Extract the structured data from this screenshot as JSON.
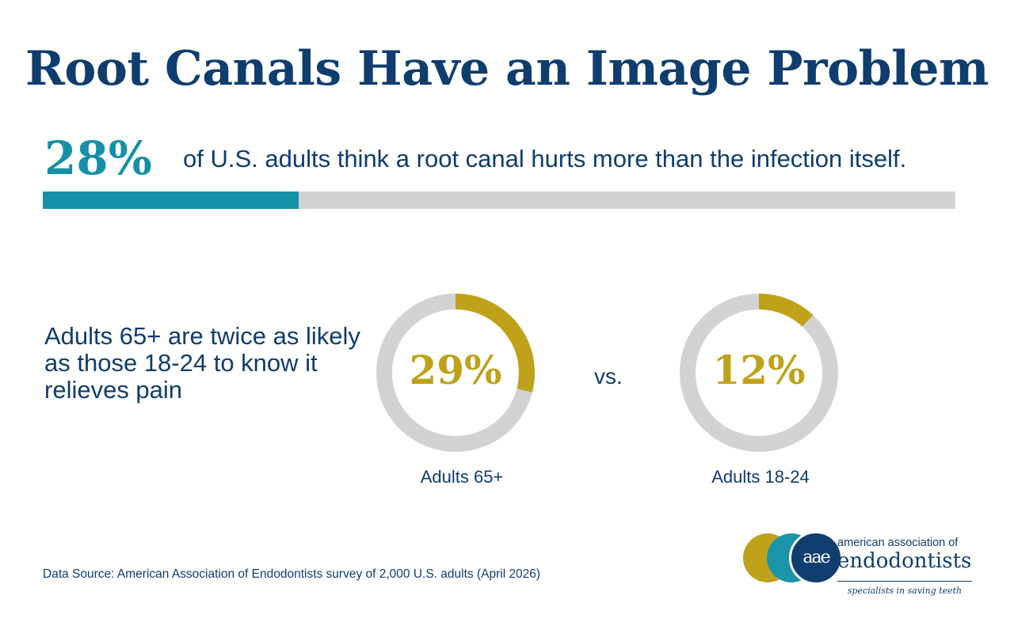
{
  "title": "Root Canals Have an Image Problem",
  "headline_stat": {
    "value_label": "28%",
    "text": "of U.S. adults think a root canal hurts more than the infection itself."
  },
  "lead_text": "Adults 65+ are twice as likely as those 18-24 to know it relieves pain",
  "comparison_word": "vs.",
  "source": "Data Source: American Association of Endodontists survey of 2,000 U.S. adults (April 2026)",
  "logo": {
    "monogram": "aae",
    "line1": "american association of",
    "line2": "endodontists",
    "tagline": "specialists in saving teeth"
  },
  "colors": {
    "navy": "#0f3d6e",
    "teal": "#1590a6",
    "gold": "#bfa21a",
    "track": "#d1d2d4"
  },
  "chart_data": [
    {
      "type": "bar",
      "orientation": "horizontal",
      "categories": [
        "U.S. adults"
      ],
      "values": [
        28
      ],
      "value_labels": [
        "28%"
      ],
      "xlim": [
        0,
        100
      ],
      "unit": "%"
    },
    {
      "type": "pie",
      "style": "donut",
      "categories": [
        "Adults 65+",
        "Adults 18-24"
      ],
      "values": [
        29,
        12
      ],
      "value_labels": [
        "29%",
        "12%"
      ],
      "max": 100,
      "unit": "%"
    }
  ]
}
